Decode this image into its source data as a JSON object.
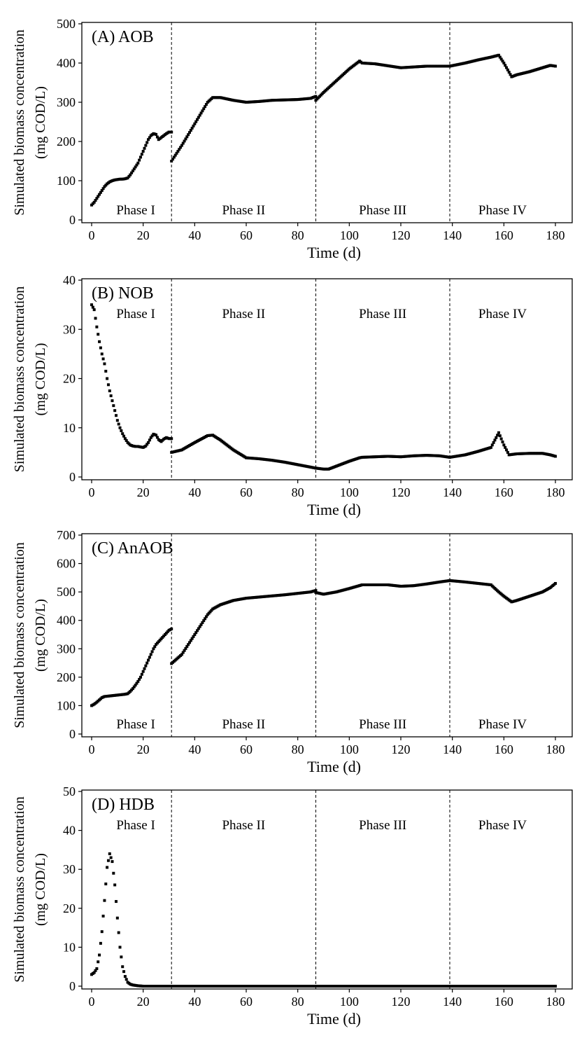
{
  "chart_data": [
    {
      "type": "scatter",
      "panel_label": "(A) AOB",
      "xlabel": "Time (d)",
      "ylabel_lines": [
        "Simulated biomass concentration",
        "(mg COD/L)"
      ],
      "xlim": [
        0,
        180
      ],
      "ylim": [
        0,
        500
      ],
      "xticks": [
        0,
        20,
        40,
        60,
        80,
        100,
        120,
        140,
        160,
        180
      ],
      "yticks": [
        0,
        100,
        200,
        300,
        400,
        500
      ],
      "phase_boundaries": [
        31,
        87,
        139
      ],
      "phase_labels": [
        "Phase I",
        "Phase II",
        "Phase III",
        "Phase IV"
      ],
      "phase_label_position": "bottom",
      "series": [
        {
          "x": [
            0,
            1,
            2,
            3,
            4,
            5,
            6,
            7,
            8,
            9,
            10,
            11,
            12,
            13,
            14,
            15,
            16,
            17,
            18,
            19,
            20,
            21,
            22,
            23,
            24,
            25,
            26,
            27,
            28,
            29,
            30,
            31,
            31,
            35,
            40,
            45,
            47,
            50,
            55,
            60,
            65,
            70,
            75,
            80,
            85,
            87,
            87,
            90,
            95,
            100,
            104,
            105,
            110,
            115,
            120,
            125,
            130,
            135,
            139,
            139,
            145,
            150,
            155,
            158,
            160,
            163,
            165,
            170,
            175,
            178,
            180
          ],
          "y": [
            38,
            45,
            55,
            65,
            75,
            85,
            92,
            97,
            100,
            102,
            103,
            104,
            104,
            105,
            107,
            115,
            125,
            135,
            145,
            160,
            175,
            190,
            205,
            215,
            220,
            218,
            205,
            210,
            215,
            220,
            224,
            224,
            150,
            190,
            245,
            300,
            312,
            312,
            305,
            300,
            302,
            305,
            306,
            307,
            310,
            315,
            305,
            325,
            355,
            385,
            405,
            400,
            398,
            393,
            388,
            390,
            392,
            392,
            392,
            392,
            400,
            408,
            415,
            420,
            400,
            365,
            370,
            378,
            388,
            394,
            392
          ]
        }
      ]
    },
    {
      "type": "scatter",
      "panel_label": "(B) NOB",
      "xlabel": "Time (d)",
      "ylabel_lines": [
        "Simulated biomass concentration",
        "(mg COD/L)"
      ],
      "xlim": [
        0,
        180
      ],
      "ylim": [
        0,
        40
      ],
      "xticks": [
        0,
        20,
        40,
        60,
        80,
        100,
        120,
        140,
        160,
        180
      ],
      "yticks": [
        0,
        10,
        20,
        30,
        40
      ],
      "phase_boundaries": [
        31,
        87,
        139
      ],
      "phase_labels": [
        "Phase I",
        "Phase II",
        "Phase III",
        "Phase IV"
      ],
      "phase_label_position": "top",
      "series": [
        {
          "x": [
            0,
            1,
            2,
            3,
            4,
            5,
            6,
            7,
            8,
            9,
            10,
            11,
            12,
            13,
            14,
            15,
            16,
            17,
            18,
            19,
            20,
            21,
            22,
            23,
            24,
            25,
            26,
            27,
            28,
            29,
            30,
            31,
            31,
            35,
            40,
            45,
            47,
            50,
            55,
            60,
            65,
            70,
            75,
            80,
            85,
            87,
            87,
            90,
            92,
            95,
            100,
            104,
            105,
            110,
            115,
            120,
            125,
            130,
            135,
            139,
            139,
            145,
            150,
            155,
            158,
            160,
            162,
            165,
            170,
            175,
            178,
            180
          ],
          "y": [
            35,
            34,
            30.5,
            27.5,
            25,
            23,
            20,
            17.5,
            15.5,
            13.5,
            11.5,
            10,
            8.8,
            7.8,
            7,
            6.5,
            6.3,
            6.2,
            6.2,
            6.1,
            6,
            6.3,
            7,
            8,
            8.7,
            8.5,
            7.6,
            7.2,
            7.7,
            8,
            7.8,
            7.8,
            5,
            5.5,
            7,
            8.4,
            8.5,
            7.5,
            5.5,
            3.9,
            3.7,
            3.4,
            3,
            2.5,
            2,
            1.8,
            1.8,
            1.6,
            1.6,
            2.2,
            3.2,
            3.9,
            4,
            4.1,
            4.2,
            4.1,
            4.3,
            4.4,
            4.3,
            4,
            4,
            4.5,
            5.2,
            6,
            9,
            6.5,
            4.5,
            4.7,
            4.8,
            4.8,
            4.5,
            4.2
          ]
        }
      ]
    },
    {
      "type": "scatter",
      "panel_label": "(C) AnAOB",
      "xlabel": "Time (d)",
      "ylabel_lines": [
        "Simulated biomass concentration",
        "(mg COD/L)"
      ],
      "xlim": [
        0,
        180
      ],
      "ylim": [
        0,
        700
      ],
      "xticks": [
        0,
        20,
        40,
        60,
        80,
        100,
        120,
        140,
        160,
        180
      ],
      "yticks": [
        0,
        100,
        200,
        300,
        400,
        500,
        600,
        700
      ],
      "phase_boundaries": [
        31,
        87,
        139
      ],
      "phase_labels": [
        "Phase I",
        "Phase II",
        "Phase III",
        "Phase IV"
      ],
      "phase_label_position": "bottom",
      "series": [
        {
          "x": [
            0,
            1,
            2,
            3,
            4,
            5,
            6,
            7,
            8,
            9,
            10,
            11,
            12,
            13,
            14,
            15,
            16,
            17,
            18,
            19,
            20,
            21,
            22,
            23,
            24,
            25,
            26,
            27,
            28,
            29,
            30,
            31,
            31,
            35,
            40,
            45,
            47,
            50,
            55,
            60,
            65,
            70,
            75,
            80,
            85,
            87,
            87,
            90,
            95,
            100,
            105,
            110,
            115,
            120,
            125,
            130,
            135,
            139,
            139,
            145,
            150,
            155,
            158,
            160,
            163,
            165,
            170,
            175,
            178,
            180
          ],
          "y": [
            100,
            105,
            112,
            120,
            128,
            132,
            133,
            134,
            135,
            136,
            137,
            138,
            139,
            140,
            142,
            150,
            160,
            172,
            185,
            200,
            220,
            240,
            260,
            280,
            300,
            315,
            325,
            335,
            345,
            355,
            365,
            370,
            248,
            280,
            350,
            420,
            440,
            455,
            470,
            478,
            482,
            486,
            490,
            495,
            500,
            505,
            498,
            492,
            500,
            512,
            525,
            525,
            525,
            520,
            522,
            528,
            535,
            540,
            540,
            535,
            530,
            525,
            500,
            485,
            465,
            470,
            485,
            500,
            515,
            530
          ]
        }
      ]
    },
    {
      "type": "scatter",
      "panel_label": "(D) HDB",
      "xlabel": "Time (d)",
      "ylabel_lines": [
        "Simulated biomass concentration",
        "(mg COD/L)"
      ],
      "xlim": [
        0,
        180
      ],
      "ylim": [
        0,
        50
      ],
      "xticks": [
        0,
        20,
        40,
        60,
        80,
        100,
        120,
        140,
        160,
        180
      ],
      "yticks": [
        0,
        10,
        20,
        30,
        40,
        50
      ],
      "phase_boundaries": [
        31,
        87,
        139
      ],
      "phase_labels": [
        "Phase I",
        "Phase II",
        "Phase III",
        "Phase IV"
      ],
      "phase_label_position": "top",
      "series": [
        {
          "x": [
            0,
            1,
            2,
            3,
            4,
            5,
            6,
            7,
            8,
            9,
            10,
            11,
            12,
            13,
            14,
            15,
            16,
            17,
            18,
            19,
            20,
            25,
            30,
            31,
            40,
            50,
            60,
            70,
            80,
            87,
            100,
            120,
            139,
            150,
            160,
            170,
            180
          ],
          "y": [
            3,
            3.5,
            4.5,
            8,
            14,
            22,
            30.5,
            34,
            32,
            26,
            17.5,
            10,
            5,
            2.5,
            1,
            0.5,
            0.3,
            0.2,
            0.1,
            0.05,
            0,
            0,
            0,
            0,
            0,
            0,
            0,
            0,
            0,
            0,
            0,
            0,
            0,
            0,
            0,
            0,
            0
          ]
        }
      ]
    }
  ]
}
